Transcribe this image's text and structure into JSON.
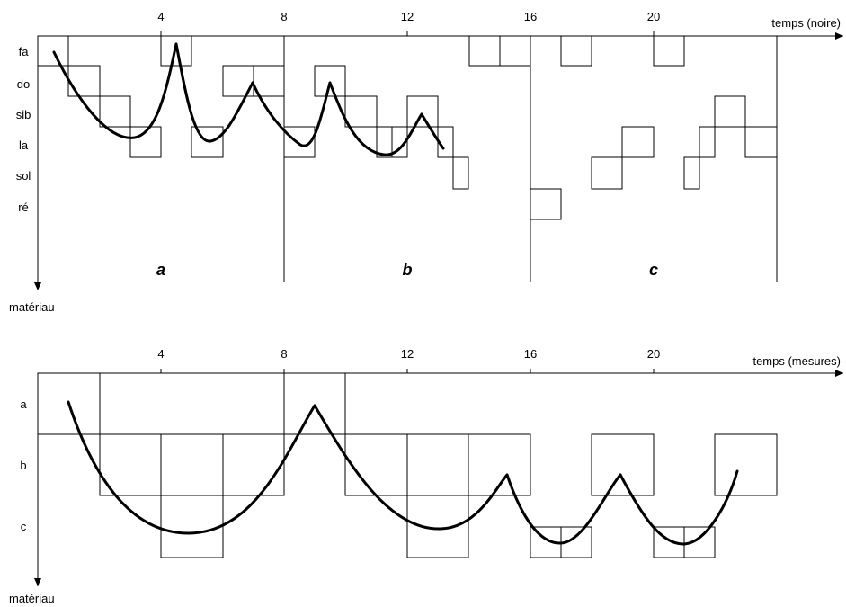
{
  "top": {
    "x_label": "temps (noire)",
    "y_label": "matériau",
    "ticks": [
      "4",
      "8",
      "12",
      "16",
      "20"
    ],
    "rows": [
      "fa",
      "do",
      "sib",
      "la",
      "sol",
      "ré"
    ],
    "sections": [
      "a",
      "b",
      "c"
    ]
  },
  "bottom": {
    "x_label": "temps (mesures)",
    "y_label": "matériau",
    "ticks": [
      "4",
      "8",
      "12",
      "16",
      "20"
    ],
    "rows": [
      "a",
      "b",
      "c"
    ]
  }
}
